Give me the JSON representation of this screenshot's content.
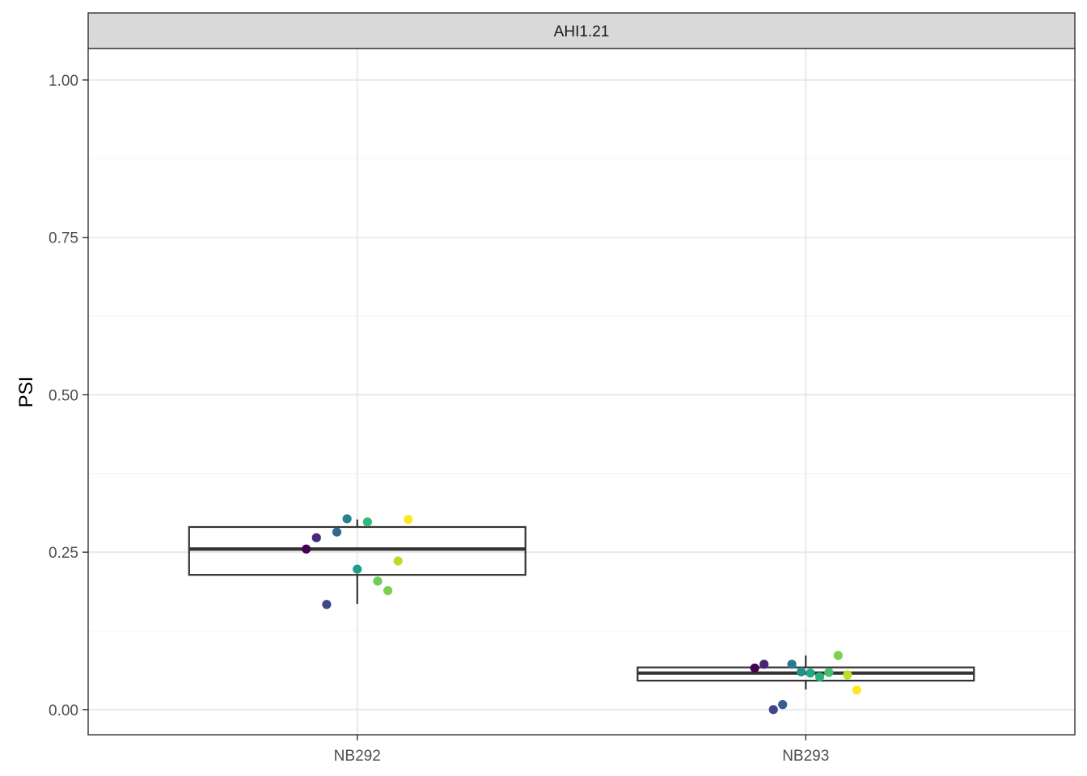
{
  "chart_data": {
    "type": "box",
    "facet_label": "AHI1.21",
    "xlabel": "",
    "ylabel": "PSI",
    "ylim": [
      -0.04,
      1.05
    ],
    "yticks": [
      "0.00",
      "0.25",
      "0.50",
      "0.75",
      "1.00"
    ],
    "ytick_values": [
      0,
      0.25,
      0.5,
      0.75,
      1.0
    ],
    "categories": [
      "NB292",
      "NB293"
    ],
    "grid": true,
    "boxes": [
      {
        "category": "NB292",
        "min": 0.168,
        "q1": 0.214,
        "median": 0.255,
        "q3": 0.29,
        "max": 0.302
      },
      {
        "category": "NB293",
        "min": 0.032,
        "q1": 0.046,
        "median": 0.058,
        "q3": 0.067,
        "max": 0.086
      }
    ],
    "points": [
      {
        "category": "NB292",
        "offset": -0.455,
        "value": 0.255,
        "color": "#440154"
      },
      {
        "category": "NB292",
        "offset": -0.364,
        "value": 0.273,
        "color": "#482878"
      },
      {
        "category": "NB292",
        "offset": -0.273,
        "value": 0.167,
        "color": "#3e4989"
      },
      {
        "category": "NB292",
        "offset": -0.182,
        "value": 0.282,
        "color": "#31688e"
      },
      {
        "category": "NB292",
        "offset": -0.091,
        "value": 0.303,
        "color": "#26828e"
      },
      {
        "category": "NB292",
        "offset": 0.0,
        "value": 0.223,
        "color": "#1f9e89"
      },
      {
        "category": "NB292",
        "offset": 0.091,
        "value": 0.298,
        "color": "#35b779"
      },
      {
        "category": "NB292",
        "offset": 0.182,
        "value": 0.204,
        "color": "#6ece58"
      },
      {
        "category": "NB292",
        "offset": 0.273,
        "value": 0.189,
        "color": "#7ad151"
      },
      {
        "category": "NB292",
        "offset": 0.364,
        "value": 0.236,
        "color": "#b5de2b"
      },
      {
        "category": "NB292",
        "offset": 0.455,
        "value": 0.302,
        "color": "#fde725"
      },
      {
        "category": "NB293",
        "offset": -0.455,
        "value": 0.066,
        "color": "#440154"
      },
      {
        "category": "NB293",
        "offset": -0.372,
        "value": 0.072,
        "color": "#482475"
      },
      {
        "category": "NB293",
        "offset": -0.289,
        "value": 0.0,
        "color": "#414487"
      },
      {
        "category": "NB293",
        "offset": -0.206,
        "value": 0.008,
        "color": "#355f8d"
      },
      {
        "category": "NB293",
        "offset": -0.124,
        "value": 0.072,
        "color": "#2a788e"
      },
      {
        "category": "NB293",
        "offset": -0.041,
        "value": 0.06,
        "color": "#21918c"
      },
      {
        "category": "NB293",
        "offset": 0.041,
        "value": 0.058,
        "color": "#22a884"
      },
      {
        "category": "NB293",
        "offset": 0.124,
        "value": 0.052,
        "color": "#2ab07f"
      },
      {
        "category": "NB293",
        "offset": 0.206,
        "value": 0.059,
        "color": "#44bf70"
      },
      {
        "category": "NB293",
        "offset": 0.289,
        "value": 0.086,
        "color": "#7ad151"
      },
      {
        "category": "NB293",
        "offset": 0.372,
        "value": 0.055,
        "color": "#bddf26"
      },
      {
        "category": "NB293",
        "offset": 0.455,
        "value": 0.031,
        "color": "#fde725"
      }
    ],
    "colors": {
      "strip_fill": "#d9d9d9",
      "border": "#333333",
      "grid_major": "#ebebeb",
      "grid_minor": "#f5f5f5",
      "box_line": "#333333"
    }
  }
}
